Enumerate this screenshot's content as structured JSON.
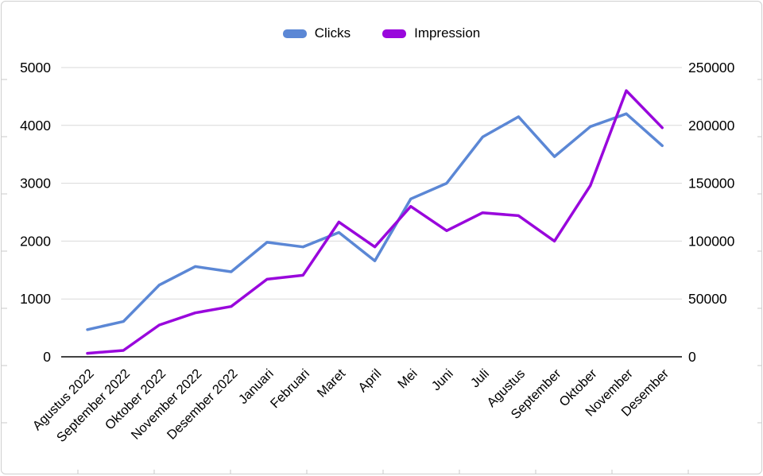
{
  "chart_data": {
    "type": "line",
    "title": "",
    "categories": [
      "Agustus 2022",
      "September 2022",
      "Oktober 2022",
      "November 2022",
      "Desember 2022",
      "Januari",
      "Februari",
      "Maret",
      "April",
      "Mei",
      "Juni",
      "Juli",
      "Agustus",
      "September",
      "Oktober",
      "November",
      "Desember"
    ],
    "series": [
      {
        "name": "Clicks",
        "color": "#5b87d5",
        "axis": "left",
        "values": [
          470,
          610,
          1240,
          1560,
          1470,
          1980,
          1900,
          2150,
          1660,
          2730,
          3000,
          3800,
          4150,
          3460,
          3980,
          4200,
          3650
        ]
      },
      {
        "name": "Impression",
        "color": "#9907dc",
        "axis": "right",
        "values": [
          3000,
          5500,
          27500,
          38000,
          43500,
          67000,
          70500,
          116500,
          95000,
          130000,
          109000,
          124500,
          122000,
          100000,
          148000,
          230000,
          198000
        ]
      }
    ],
    "left_axis": {
      "min": 0,
      "max": 5000,
      "ticks": [
        "0",
        "1000",
        "2000",
        "3000",
        "4000",
        "5000"
      ]
    },
    "right_axis": {
      "min": 0,
      "max": 250000,
      "ticks": [
        "0",
        "50000",
        "100000",
        "150000",
        "200000",
        "250000"
      ]
    },
    "grid": true,
    "legend_position": "top",
    "colors": {
      "gridline": "#d9d9d9",
      "baseline": "#424242",
      "text": "#000000"
    }
  }
}
